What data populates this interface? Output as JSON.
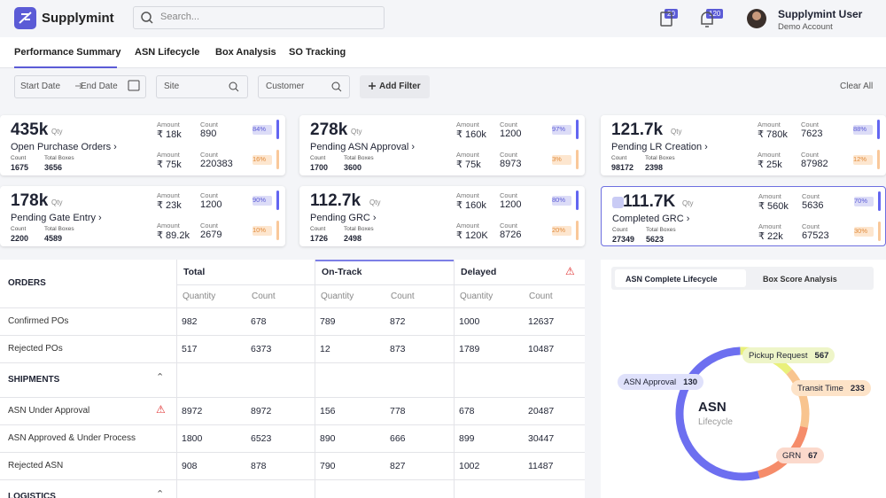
{
  "header": {
    "brand": "Supplymint",
    "search": "Search...",
    "badges": [
      "20",
      "120"
    ],
    "user": "Supplymint User",
    "account": "Demo Account"
  },
  "tabs": [
    "Performance Summary",
    "ASN Lifecycle",
    "Box Analysis",
    "SO Tracking"
  ],
  "filters": {
    "start": "Start Date",
    "end": "End Date",
    "site": "Site",
    "customer": "Customer",
    "add": "Add Filter",
    "clear": "Clear All"
  },
  "card_labels": {
    "unit": "Qty",
    "count": "Count",
    "boxes": "Total Boxes",
    "amount": "Amount"
  },
  "cards": [
    {
      "value": "435k",
      "title": "Open Purchase Orders",
      "count": 1675,
      "boxes": 3656,
      "metrics": [
        {
          "amount": "₹ 18k",
          "count": 890,
          "share": "84%"
        },
        {
          "amount": "₹ 75k",
          "count": 220383,
          "share": "16%"
        }
      ]
    },
    {
      "value": "278k",
      "title": "Pending ASN Approval",
      "count": 1700,
      "boxes": 3600,
      "metrics": [
        {
          "amount": "₹ 160k",
          "count": 1200,
          "share": "97%"
        },
        {
          "amount": "₹ 75k",
          "count": 8973,
          "share": "3%"
        }
      ]
    },
    {
      "value": "121.7k",
      "title": "Pending LR Creation",
      "count": 98172,
      "boxes": 2398,
      "metrics": [
        {
          "amount": "₹ 780k",
          "count": 7623,
          "share": "88%"
        },
        {
          "amount": "₹ 25k",
          "count": 87982,
          "share": "12%"
        }
      ]
    },
    {
      "value": "178k",
      "title": "Pending Gate Entry",
      "count": 2200,
      "boxes": 4589,
      "metrics": [
        {
          "amount": "₹ 23k",
          "count": 1200,
          "share": "90%"
        },
        {
          "amount": "₹ 89.2k",
          "count": 2679,
          "share": "10%"
        }
      ]
    },
    {
      "value": "112.7k",
      "title": "Pending GRC",
      "count": 1726,
      "boxes": 2498,
      "metrics": [
        {
          "amount": "₹ 160k",
          "count": 1200,
          "share": "80%"
        },
        {
          "amount": "₹ 120K",
          "count": 8726,
          "share": "20%"
        }
      ]
    },
    {
      "value": "111.7K",
      "title": "Completed GRC",
      "count": 27349,
      "boxes": 5623,
      "metrics": [
        {
          "amount": "₹ 560k",
          "count": 5636,
          "share": "70%"
        },
        {
          "amount": "₹ 22k",
          "count": 67523,
          "share": "30%"
        }
      ]
    }
  ],
  "table": {
    "groups": [
      "Total",
      "On-Track",
      "Delayed"
    ],
    "subheaders": [
      "Quantity",
      "Count"
    ],
    "sections": [
      {
        "title": "ORDERS",
        "rows": [
          {
            "label": "Confirmed POs",
            "values": [
              982,
              678,
              789,
              872,
              1000,
              12637
            ]
          },
          {
            "label": "Rejected POs",
            "values": [
              517,
              6373,
              12,
              873,
              1789,
              10487
            ]
          }
        ]
      },
      {
        "title": "SHIPMENTS",
        "rows": [
          {
            "label": "ASN Under Approval",
            "values": [
              8972,
              8972,
              156,
              778,
              678,
              20487
            ]
          },
          {
            "label": "ASN Approved & Under Process",
            "values": [
              1800,
              6523,
              890,
              666,
              899,
              30447
            ]
          },
          {
            "label": "Rejected ASN",
            "values": [
              908,
              878,
              790,
              827,
              1002,
              11487
            ]
          }
        ]
      },
      {
        "title": "LOGISTICS",
        "rows": []
      }
    ]
  },
  "lifecycle": {
    "tabs": [
      "ASN Complete Lifecycle",
      "Box Score Analysis"
    ],
    "center": "ASN",
    "sub": "Lifecycle",
    "stages": [
      {
        "name": "Pickup Request",
        "value": 567
      },
      {
        "name": "Transit Time",
        "value": 233
      },
      {
        "name": "GRN",
        "value": 67
      },
      {
        "name": "ASN Approval",
        "value": 130
      }
    ]
  }
}
